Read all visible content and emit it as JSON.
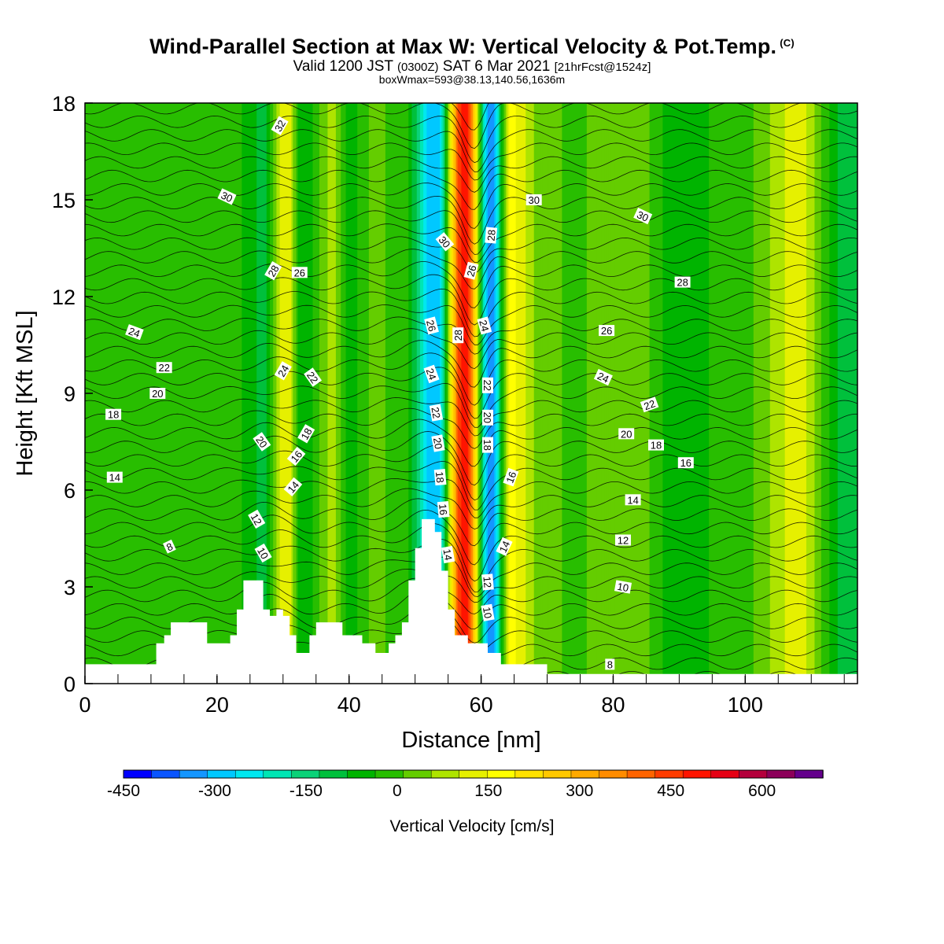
{
  "title": {
    "main": "Wind-Parallel Section at Max W: Vertical Velocity & Pot.Temp.",
    "copyright": "(C)",
    "valid_prefix": "Valid 1200 JST",
    "valid_zulu": "(0300Z)",
    "valid_date": "SAT 6 Mar 2021",
    "forecast": "[21hrFcst@1524z]",
    "box_info": "boxWmax=593@38.13,140.56,1636m"
  },
  "chart_data": {
    "type": "heatmap",
    "xlabel": "Distance [nm]",
    "ylabel": "Height [Kft MSL]",
    "xlim": [
      0,
      117
    ],
    "ylim": [
      0,
      18
    ],
    "x_ticks": [
      0,
      20,
      40,
      60,
      80,
      100
    ],
    "y_ticks": [
      0,
      3,
      6,
      9,
      12,
      15,
      18
    ],
    "colorbar": {
      "label": "Vertical Velocity [cm/s]",
      "min": -450,
      "max": 700,
      "step": 50,
      "tick_labels": [
        "-450",
        "-300",
        "-150",
        "0",
        "150",
        "300",
        "450",
        "600"
      ],
      "tick_values": [
        -450,
        -300,
        -150,
        0,
        150,
        300,
        450,
        600
      ],
      "colors": [
        "#0000ff",
        "#0a55ff",
        "#1496ff",
        "#00c8ff",
        "#00e8f0",
        "#00e6b4",
        "#0ad278",
        "#00c03c",
        "#00b400",
        "#28be00",
        "#64cd00",
        "#aee400",
        "#e6f000",
        "#ffff00",
        "#ffe200",
        "#ffc800",
        "#ffaa00",
        "#ff8c00",
        "#ff6400",
        "#ff3c00",
        "#ff1400",
        "#e60014",
        "#b4003c",
        "#8c005a",
        "#64008c"
      ]
    },
    "terrain": [
      [
        0,
        0.6
      ],
      [
        10.8,
        0.6
      ],
      [
        10.8,
        1.25
      ],
      [
        12,
        1.25
      ],
      [
        12,
        1.5
      ],
      [
        13,
        1.5
      ],
      [
        13,
        1.9
      ],
      [
        18.5,
        1.9
      ],
      [
        18.5,
        1.25
      ],
      [
        22,
        1.25
      ],
      [
        22,
        1.5
      ],
      [
        23,
        1.5
      ],
      [
        23,
        2.3
      ],
      [
        24,
        2.3
      ],
      [
        24,
        3.2
      ],
      [
        27,
        3.2
      ],
      [
        27,
        2.3
      ],
      [
        28,
        2.3
      ],
      [
        28,
        2.1
      ],
      [
        29,
        2.1
      ],
      [
        29,
        2.3
      ],
      [
        30,
        2.3
      ],
      [
        30,
        2.1
      ],
      [
        31,
        2.1
      ],
      [
        31,
        1.5
      ],
      [
        32,
        1.5
      ],
      [
        32,
        0.95
      ],
      [
        34,
        0.95
      ],
      [
        34,
        1.5
      ],
      [
        35,
        1.5
      ],
      [
        35,
        1.9
      ],
      [
        39,
        1.9
      ],
      [
        39,
        1.5
      ],
      [
        42,
        1.5
      ],
      [
        42,
        1.25
      ],
      [
        44,
        1.25
      ],
      [
        44,
        0.95
      ],
      [
        46,
        0.95
      ],
      [
        46,
        1.25
      ],
      [
        47,
        1.25
      ],
      [
        47,
        1.5
      ],
      [
        48,
        1.5
      ],
      [
        48,
        1.9
      ],
      [
        49,
        1.9
      ],
      [
        49,
        3.2
      ],
      [
        50,
        3.2
      ],
      [
        50,
        4.2
      ],
      [
        51,
        4.2
      ],
      [
        51,
        5.1
      ],
      [
        53,
        5.1
      ],
      [
        53,
        4.7
      ],
      [
        54,
        4.7
      ],
      [
        54,
        3.5
      ],
      [
        55,
        3.5
      ],
      [
        55,
        2.3
      ],
      [
        56,
        2.3
      ],
      [
        56,
        1.5
      ],
      [
        58,
        1.5
      ],
      [
        58,
        1.25
      ],
      [
        61,
        1.25
      ],
      [
        61,
        0.95
      ],
      [
        63,
        0.95
      ],
      [
        63,
        0.6
      ],
      [
        70,
        0.6
      ],
      [
        70,
        0.3
      ],
      [
        117,
        0.3
      ]
    ],
    "w_bands": [
      {
        "x": 5.5,
        "w": 20
      },
      {
        "x": 13,
        "w": 30
      },
      {
        "x": 22,
        "w": 20
      },
      {
        "x": 27,
        "w": -60
      },
      {
        "x": 30.5,
        "w": 190
      },
      {
        "x": 33,
        "w": -40
      },
      {
        "x": 37.5,
        "w": 110
      },
      {
        "x": 40,
        "w": -20
      },
      {
        "x": 44,
        "w": 60
      },
      {
        "x": 48,
        "w": 30
      },
      {
        "x": 53,
        "w": -300
      },
      {
        "x": 57.5,
        "w": 593
      },
      {
        "x": 61.5,
        "w": -330
      },
      {
        "x": 64.5,
        "w": 210
      },
      {
        "x": 69,
        "w": 80
      },
      {
        "x": 74,
        "w": 40
      },
      {
        "x": 82,
        "w": 100
      },
      {
        "x": 90,
        "w": -30
      },
      {
        "x": 100,
        "w": 40
      },
      {
        "x": 108,
        "w": 170
      },
      {
        "x": 115,
        "w": -60
      }
    ],
    "theta_labels": [
      {
        "x": 4.5,
        "y": 6.4,
        "text": "14",
        "angle": 0
      },
      {
        "x": 4.3,
        "y": 8.35,
        "text": "18",
        "angle": 0
      },
      {
        "x": 11,
        "y": 9.0,
        "text": "20",
        "angle": 0
      },
      {
        "x": 12,
        "y": 9.8,
        "text": "22",
        "angle": 0
      },
      {
        "x": 7.5,
        "y": 10.9,
        "text": "24",
        "angle": 20
      },
      {
        "x": 12.8,
        "y": 4.25,
        "text": "8",
        "angle": -25
      },
      {
        "x": 21.5,
        "y": 15.1,
        "text": "30",
        "angle": 25
      },
      {
        "x": 29.5,
        "y": 17.3,
        "text": "32",
        "angle": -60
      },
      {
        "x": 28.5,
        "y": 12.8,
        "text": "28",
        "angle": -60
      },
      {
        "x": 32.5,
        "y": 12.75,
        "text": "26",
        "angle": 0
      },
      {
        "x": 30,
        "y": 9.7,
        "text": "24",
        "angle": -60
      },
      {
        "x": 34.5,
        "y": 9.5,
        "text": "22",
        "angle": 55
      },
      {
        "x": 26.8,
        "y": 7.5,
        "text": "20",
        "angle": 55
      },
      {
        "x": 33.5,
        "y": 7.75,
        "text": "18",
        "angle": -60
      },
      {
        "x": 32,
        "y": 7.05,
        "text": "16",
        "angle": -50
      },
      {
        "x": 31.5,
        "y": 6.1,
        "text": "14",
        "angle": -50
      },
      {
        "x": 26,
        "y": 5.1,
        "text": "12",
        "angle": 60
      },
      {
        "x": 27,
        "y": 4.05,
        "text": "10",
        "angle": 60
      },
      {
        "x": 54.5,
        "y": 13.7,
        "text": "30",
        "angle": 50
      },
      {
        "x": 61.5,
        "y": 13.9,
        "text": "28",
        "angle": -85
      },
      {
        "x": 58.5,
        "y": 12.8,
        "text": "26",
        "angle": -75
      },
      {
        "x": 52.5,
        "y": 11.1,
        "text": "26",
        "angle": 75
      },
      {
        "x": 56.5,
        "y": 10.8,
        "text": "28",
        "angle": -90
      },
      {
        "x": 60.5,
        "y": 11.1,
        "text": "24",
        "angle": 75
      },
      {
        "x": 52.5,
        "y": 9.6,
        "text": "24",
        "angle": 70
      },
      {
        "x": 61,
        "y": 9.25,
        "text": "22",
        "angle": 90
      },
      {
        "x": 53.2,
        "y": 8.4,
        "text": "22",
        "angle": 80
      },
      {
        "x": 61,
        "y": 8.25,
        "text": "20",
        "angle": 90
      },
      {
        "x": 53.5,
        "y": 7.45,
        "text": "20",
        "angle": 80
      },
      {
        "x": 61,
        "y": 7.4,
        "text": "18",
        "angle": 90
      },
      {
        "x": 53.8,
        "y": 6.4,
        "text": "18",
        "angle": 85
      },
      {
        "x": 64.5,
        "y": 6.4,
        "text": "16",
        "angle": -70
      },
      {
        "x": 54.3,
        "y": 5.4,
        "text": "16",
        "angle": 85
      },
      {
        "x": 55,
        "y": 4.0,
        "text": "14",
        "angle": 80
      },
      {
        "x": 63.5,
        "y": 4.25,
        "text": "14",
        "angle": -65
      },
      {
        "x": 61,
        "y": 3.15,
        "text": "12",
        "angle": 85
      },
      {
        "x": 61,
        "y": 2.2,
        "text": "10",
        "angle": 80
      },
      {
        "x": 68,
        "y": 15.0,
        "text": "30",
        "angle": 0
      },
      {
        "x": 84.5,
        "y": 14.5,
        "text": "30",
        "angle": 25
      },
      {
        "x": 90.5,
        "y": 12.45,
        "text": "28",
        "angle": 0
      },
      {
        "x": 79,
        "y": 10.95,
        "text": "26",
        "angle": 0
      },
      {
        "x": 78.5,
        "y": 9.5,
        "text": "24",
        "angle": 25
      },
      {
        "x": 85.5,
        "y": 8.65,
        "text": "22",
        "angle": -20
      },
      {
        "x": 82,
        "y": 7.75,
        "text": "20",
        "angle": 0
      },
      {
        "x": 86.5,
        "y": 7.4,
        "text": "18",
        "angle": 0
      },
      {
        "x": 91,
        "y": 6.85,
        "text": "16",
        "angle": 0
      },
      {
        "x": 83,
        "y": 5.7,
        "text": "14",
        "angle": 0
      },
      {
        "x": 81.5,
        "y": 4.45,
        "text": "12",
        "angle": 0
      },
      {
        "x": 81.5,
        "y": 3.0,
        "text": "10",
        "angle": 10
      },
      {
        "x": 79.5,
        "y": 0.6,
        "text": "8",
        "angle": 0
      }
    ]
  }
}
